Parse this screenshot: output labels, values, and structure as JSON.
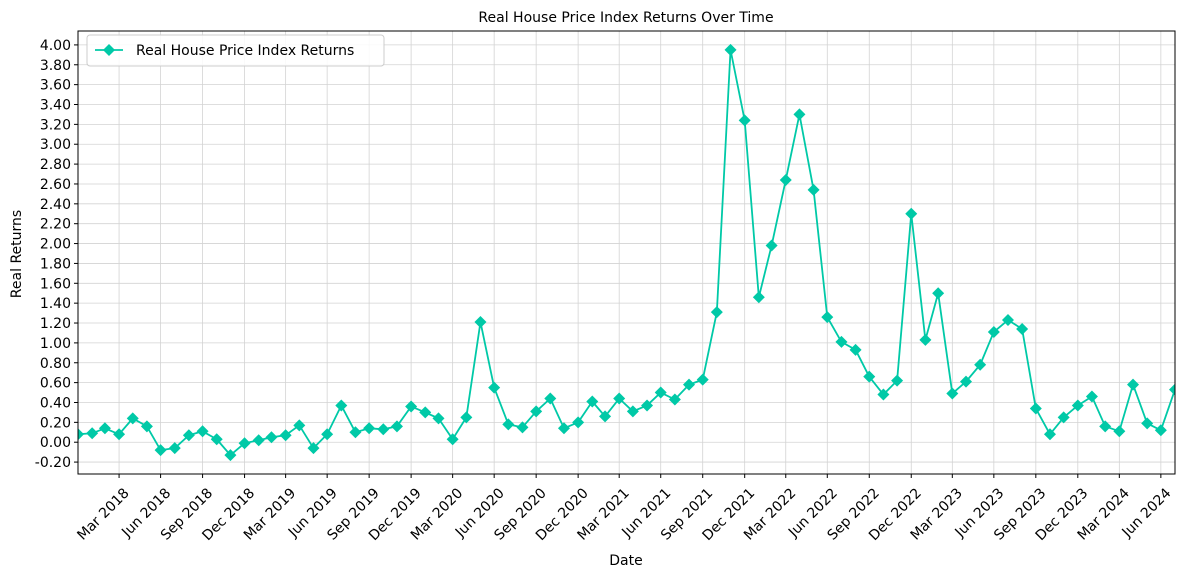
{
  "chart_data": {
    "type": "line",
    "title": "Real House Price Index Returns Over Time",
    "xlabel": "Date",
    "ylabel": "Real Returns",
    "ylim": [
      -0.32,
      4.14
    ],
    "yticks": [
      -0.2,
      0.0,
      0.2,
      0.4,
      0.6,
      0.8,
      1.0,
      1.2,
      1.4,
      1.6,
      1.8,
      2.0,
      2.2,
      2.4,
      2.6,
      2.8,
      3.0,
      3.2,
      3.4,
      3.6,
      3.8,
      4.0
    ],
    "ytick_labels": [
      "-0.20",
      "0.00",
      "0.20",
      "0.40",
      "0.60",
      "0.80",
      "1.00",
      "1.20",
      "1.40",
      "1.60",
      "1.80",
      "2.00",
      "2.20",
      "2.40",
      "2.60",
      "2.80",
      "3.00",
      "3.20",
      "3.40",
      "3.60",
      "3.80",
      "4.00"
    ],
    "xlim": [
      "2017-12-31",
      "2024-07-31"
    ],
    "xticks": [
      "2018-03-31",
      "2018-06-30",
      "2018-09-30",
      "2018-12-31",
      "2019-03-31",
      "2019-06-30",
      "2019-09-30",
      "2019-12-31",
      "2020-03-31",
      "2020-06-30",
      "2020-09-30",
      "2020-12-31",
      "2021-03-31",
      "2021-06-30",
      "2021-09-30",
      "2021-12-31",
      "2022-03-31",
      "2022-06-30",
      "2022-09-30",
      "2022-12-31",
      "2023-03-31",
      "2023-06-30",
      "2023-09-30",
      "2023-12-31",
      "2024-03-31",
      "2024-06-30"
    ],
    "xtick_labels": [
      "Mar 2018",
      "Jun 2018",
      "Sep 2018",
      "Dec 2018",
      "Mar 2019",
      "Jun 2019",
      "Sep 2019",
      "Dec 2019",
      "Mar 2020",
      "Jun 2020",
      "Sep 2020",
      "Dec 2020",
      "Mar 2021",
      "Jun 2021",
      "Sep 2021",
      "Dec 2021",
      "Mar 2022",
      "Jun 2022",
      "Sep 2022",
      "Dec 2022",
      "Mar 2023",
      "Jun 2023",
      "Sep 2023",
      "Dec 2023",
      "Mar 2024",
      "Jun 2024"
    ],
    "grid": true,
    "legend_position": "top-left",
    "series": [
      {
        "name": "Real House Price Index Returns",
        "color": "#00C9A7",
        "marker": "diamond",
        "x": [
          "2017-12-31",
          "2018-01-31",
          "2018-02-28",
          "2018-03-31",
          "2018-04-30",
          "2018-05-31",
          "2018-06-30",
          "2018-07-31",
          "2018-08-31",
          "2018-09-30",
          "2018-10-31",
          "2018-11-30",
          "2018-12-31",
          "2019-01-31",
          "2019-02-28",
          "2019-03-31",
          "2019-04-30",
          "2019-05-31",
          "2019-06-30",
          "2019-07-31",
          "2019-08-31",
          "2019-09-30",
          "2019-10-31",
          "2019-11-30",
          "2019-12-31",
          "2020-01-31",
          "2020-02-29",
          "2020-03-31",
          "2020-04-30",
          "2020-05-31",
          "2020-06-30",
          "2020-07-31",
          "2020-08-31",
          "2020-09-30",
          "2020-10-31",
          "2020-11-30",
          "2020-12-31",
          "2021-01-31",
          "2021-02-28",
          "2021-03-31",
          "2021-04-30",
          "2021-05-31",
          "2021-06-30",
          "2021-07-31",
          "2021-08-31",
          "2021-09-30",
          "2021-10-31",
          "2021-11-30",
          "2021-12-31",
          "2022-01-31",
          "2022-02-28",
          "2022-03-31",
          "2022-04-30",
          "2022-05-31",
          "2022-06-30",
          "2022-07-31",
          "2022-08-31",
          "2022-09-30",
          "2022-10-31",
          "2022-11-30",
          "2022-12-31",
          "2023-01-31",
          "2023-02-28",
          "2023-03-31",
          "2023-04-30",
          "2023-05-31",
          "2023-06-30",
          "2023-07-31",
          "2023-08-31",
          "2023-09-30",
          "2023-10-31",
          "2023-11-30",
          "2023-12-31",
          "2024-01-31",
          "2024-02-29",
          "2024-03-31",
          "2024-04-30",
          "2024-05-31",
          "2024-06-30",
          "2024-07-31"
        ],
        "y": [
          0.08,
          0.09,
          0.14,
          0.08,
          0.24,
          0.16,
          -0.08,
          -0.06,
          0.07,
          0.11,
          0.03,
          -0.13,
          -0.01,
          0.02,
          0.05,
          0.07,
          0.17,
          -0.06,
          0.08,
          0.37,
          0.1,
          0.14,
          0.13,
          0.16,
          0.36,
          0.3,
          0.24,
          0.03,
          0.25,
          1.21,
          0.55,
          0.18,
          0.15,
          0.31,
          0.44,
          0.14,
          0.2,
          0.41,
          0.26,
          0.44,
          0.31,
          0.37,
          0.5,
          0.43,
          0.58,
          0.63,
          1.31,
          3.95,
          3.24,
          1.46,
          1.98,
          2.64,
          3.3,
          2.54,
          1.26,
          1.01,
          0.93,
          0.66,
          0.48,
          0.62,
          2.3,
          1.03,
          1.5,
          0.49,
          0.61,
          0.78,
          1.11,
          1.23,
          1.14,
          0.34,
          0.08,
          0.25,
          0.37,
          0.46,
          0.16,
          0.11,
          0.58,
          0.19,
          0.12,
          0.53
        ]
      }
    ]
  }
}
